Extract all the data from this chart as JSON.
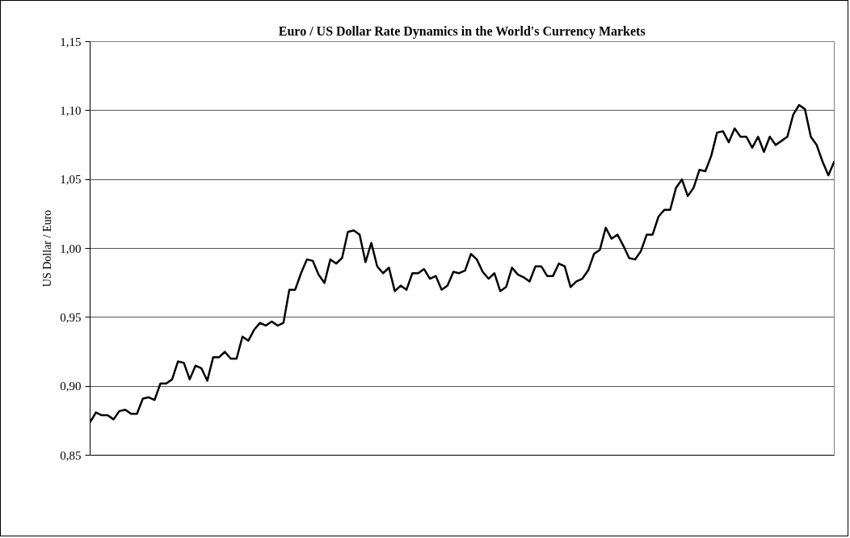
{
  "chart_data": {
    "type": "line",
    "title": "Euro / US Dollar Rate Dynamics in the World's Currency Markets",
    "ylabel": "US Dollar / Euro",
    "categories": [
      null,
      null,
      null,
      null,
      null,
      null,
      null,
      null,
      null,
      null,
      null,
      null,
      null,
      null,
      null,
      null,
      null,
      null,
      null,
      null,
      null,
      null,
      null,
      null,
      null,
      null,
      null,
      null,
      null,
      null,
      null,
      null,
      null,
      null,
      null,
      null,
      null,
      null,
      null,
      null,
      null,
      null,
      null,
      null,
      null,
      null,
      null,
      null,
      null,
      null,
      null,
      null,
      null,
      null,
      null,
      null,
      null,
      null,
      null,
      null,
      null,
      null,
      null,
      null,
      null,
      null,
      null,
      null,
      null,
      null,
      null,
      null,
      null,
      null,
      null,
      null,
      null,
      null,
      null,
      null,
      null,
      null,
      null,
      null,
      null,
      null,
      null,
      null,
      null,
      null,
      null,
      null,
      null,
      null,
      null,
      null,
      null,
      null,
      null,
      null,
      null,
      null,
      null,
      null,
      null,
      null,
      null,
      null,
      null,
      null,
      null,
      null,
      null,
      null,
      null,
      null,
      null,
      null,
      null,
      null,
      null,
      null,
      null,
      null,
      null,
      null,
      null,
      null
    ],
    "values": [
      0.874,
      0.881,
      0.879,
      0.879,
      0.876,
      0.882,
      0.883,
      0.88,
      0.88,
      0.891,
      0.892,
      0.89,
      0.902,
      0.902,
      0.905,
      0.918,
      0.917,
      0.905,
      0.915,
      0.913,
      0.904,
      0.921,
      0.921,
      0.925,
      0.92,
      0.92,
      0.936,
      0.933,
      0.941,
      0.946,
      0.944,
      0.947,
      0.944,
      0.946,
      0.97,
      0.97,
      0.982,
      0.992,
      0.991,
      0.981,
      0.975,
      0.992,
      0.989,
      0.993,
      1.012,
      1.013,
      1.01,
      0.99,
      1.004,
      0.987,
      0.982,
      0.986,
      0.969,
      0.973,
      0.97,
      0.982,
      0.982,
      0.985,
      0.978,
      0.98,
      0.97,
      0.973,
      0.983,
      0.982,
      0.984,
      0.996,
      0.992,
      0.983,
      0.978,
      0.982,
      0.969,
      0.972,
      0.986,
      0.981,
      0.979,
      0.976,
      0.987,
      0.987,
      0.98,
      0.98,
      0.989,
      0.987,
      0.972,
      0.976,
      0.978,
      0.984,
      0.996,
      0.999,
      1.015,
      1.007,
      1.01,
      1.002,
      0.993,
      0.992,
      0.998,
      1.01,
      1.01,
      1.023,
      1.028,
      1.028,
      1.044,
      1.05,
      1.038,
      1.044,
      1.057,
      1.056,
      1.067,
      1.084,
      1.085,
      1.077,
      1.087,
      1.081,
      1.081,
      1.073,
      1.081,
      1.07,
      1.081,
      1.075,
      1.078,
      1.081,
      1.097,
      1.104,
      1.101,
      1.081,
      1.075,
      1.063,
      1.053,
      1.063
    ],
    "color": "#000000",
    "ylim": [
      0.85,
      1.15
    ],
    "yticks": [
      {
        "value": 0.85,
        "label": "0,85"
      },
      {
        "value": 0.9,
        "label": "0,90"
      },
      {
        "value": 0.95,
        "label": "0,95"
      },
      {
        "value": 1.0,
        "label": "1,00"
      },
      {
        "value": 1.05,
        "label": "1,05"
      },
      {
        "value": 1.1,
        "label": "1,10"
      },
      {
        "value": 1.15,
        "label": "1,15"
      }
    ],
    "grid": "y",
    "tick_labels": "y"
  }
}
